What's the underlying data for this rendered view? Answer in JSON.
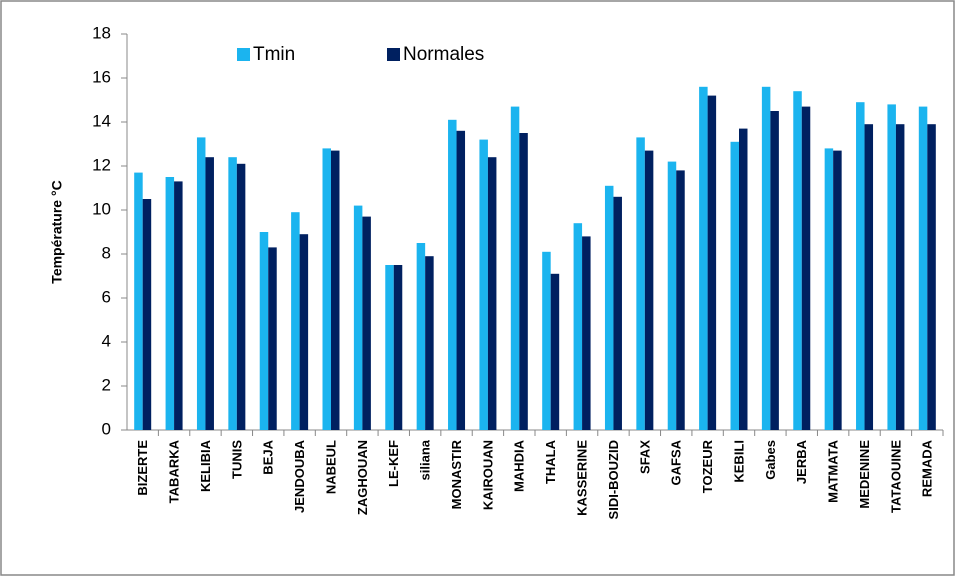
{
  "chart_data": {
    "type": "bar",
    "y_label": "Température °C",
    "categories": [
      "BIZERTE",
      "TABARKA",
      "KELIBIA",
      "TUNIS",
      "BEJA",
      "JENDOUBA",
      "NABEUL",
      "ZAGHOUAN",
      "LE-KEF",
      "siliana",
      "MONASTIR",
      "KAIROUAN",
      "MAHDIA",
      "THALA",
      "KASSERINE",
      "SIDI-BOUZID",
      "SFAX",
      "GAFSA",
      "TOZEUR",
      "KEBILI",
      "Gabes",
      "JERBA",
      "MATMATA",
      "MEDENINE",
      "TATAOUINE",
      "REMADA"
    ],
    "series": [
      {
        "name": "Tmin",
        "color": "#1bb4ef",
        "values": [
          11.7,
          11.5,
          13.3,
          12.4,
          9.0,
          9.9,
          12.8,
          10.2,
          7.5,
          8.5,
          14.1,
          13.2,
          14.7,
          8.1,
          9.4,
          11.1,
          13.3,
          12.2,
          15.6,
          13.1,
          15.6,
          15.4,
          12.8,
          14.9,
          14.8,
          14.7
        ]
      },
      {
        "name": "Normales",
        "color": "#002060",
        "values": [
          10.5,
          11.3,
          12.4,
          12.1,
          8.3,
          8.9,
          12.7,
          9.7,
          7.5,
          7.9,
          13.6,
          12.4,
          13.5,
          7.1,
          8.8,
          10.6,
          12.7,
          11.8,
          15.2,
          13.7,
          14.5,
          14.7,
          12.7,
          13.9,
          13.9,
          13.9
        ]
      }
    ],
    "ylim": [
      0,
      18
    ],
    "yticks": [
      0,
      2,
      4,
      6,
      8,
      10,
      12,
      14,
      16,
      18
    ],
    "grid": false,
    "legend": "top"
  }
}
